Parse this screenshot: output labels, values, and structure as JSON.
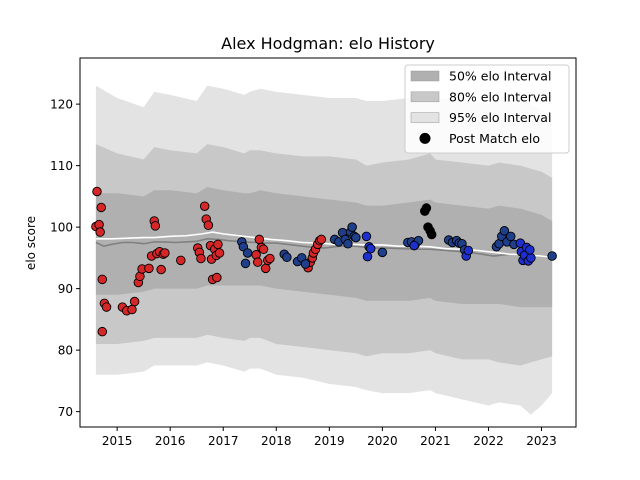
{
  "chart_data": {
    "type": "scatter",
    "title": "Alex Hodgman: elo History",
    "xlabel": "",
    "ylabel": "elo score",
    "xlim": [
      2014.3,
      2023.65
    ],
    "ylim": [
      67.5,
      127.5
    ],
    "x_ticks": [
      2015,
      2016,
      2017,
      2018,
      2019,
      2020,
      2021,
      2022,
      2023
    ],
    "y_ticks": [
      70,
      80,
      90,
      100,
      110,
      120
    ],
    "grid": false,
    "legend": {
      "placement": "top-right",
      "entries": [
        {
          "label": "50% elo Interval",
          "kind": "patch",
          "color": "#b0b0b0"
        },
        {
          "label": "80% elo Interval",
          "kind": "patch",
          "color": "#c8c8c8"
        },
        {
          "label": "95% elo Interval",
          "kind": "patch",
          "color": "#e3e3e3"
        },
        {
          "label": "Post Match elo",
          "kind": "marker",
          "color": "#000000"
        }
      ]
    },
    "colors": {
      "band95": "#e3e3e3",
      "band80": "#c8c8c8",
      "band50": "#b0b0b0",
      "mean_line": "#808080",
      "smooth_line": "#ffffff",
      "red_fill": "#d62728",
      "blue_fill": "#1f3f8a",
      "bright_blue_fill": "#1e2fd0",
      "black_fill": "#000000"
    },
    "bands": {
      "x": [
        2014.6,
        2015.0,
        2015.5,
        2015.7,
        2016.0,
        2016.5,
        2016.7,
        2017.0,
        2017.4,
        2017.5,
        2017.7,
        2018.0,
        2018.5,
        2019.0,
        2019.5,
        2019.7,
        2020.0,
        2020.5,
        2020.9,
        2021.0,
        2021.5,
        2022.0,
        2022.2,
        2022.6,
        2022.8,
        2023.0,
        2023.2
      ],
      "upper95": [
        123,
        121,
        119.5,
        122,
        121.5,
        120.5,
        123,
        122.5,
        121.5,
        122,
        122.5,
        122,
        121.5,
        121,
        121,
        120.5,
        120.5,
        121,
        122,
        121,
        120.5,
        120,
        121,
        121,
        120,
        119,
        118
      ],
      "upper80": [
        113.5,
        112,
        111,
        113,
        112.5,
        112,
        113.5,
        113,
        112,
        112.5,
        112.5,
        112,
        111.5,
        111.5,
        111,
        110,
        110.5,
        111,
        112,
        111,
        110.5,
        110,
        110.5,
        110,
        109.5,
        109,
        108
      ],
      "upper50": [
        105.5,
        105.5,
        105,
        106,
        106,
        105.5,
        106.5,
        106,
        105.5,
        105.5,
        106,
        105.5,
        105,
        104.5,
        104,
        103.5,
        103.5,
        104,
        104.5,
        104,
        103.5,
        103,
        103.5,
        103,
        102.5,
        102,
        101
      ],
      "lower50": [
        89,
        89,
        89.5,
        90,
        90,
        90,
        90.5,
        90.5,
        90.5,
        90.5,
        90.5,
        90,
        89.5,
        89,
        88.5,
        88,
        88,
        88,
        88.5,
        88,
        87.5,
        87.5,
        87.5,
        87,
        87,
        87,
        87
      ],
      "lower80": [
        81,
        81,
        81.5,
        82,
        82,
        82,
        82.5,
        82,
        81.5,
        82,
        82,
        81,
        80.5,
        80,
        79.5,
        79,
        79.5,
        79.5,
        80,
        79.5,
        78.5,
        78.5,
        78,
        77.5,
        78,
        78.5,
        79
      ],
      "lower95": [
        76,
        76,
        76.5,
        77.5,
        77.5,
        77.5,
        78,
        77.5,
        76.5,
        77,
        77,
        76,
        75.5,
        74.5,
        74,
        73.5,
        73,
        73,
        73.5,
        73,
        72,
        71,
        71.5,
        71,
        69.5,
        71,
        73
      ]
    },
    "mean_line": {
      "x": [
        2014.6,
        2014.75,
        2014.9,
        2015.1,
        2015.3,
        2015.5,
        2015.7,
        2015.9,
        2016.1,
        2016.3,
        2016.5,
        2016.7,
        2016.9,
        2017.1,
        2017.4,
        2017.6,
        2017.8,
        2018.0,
        2018.3,
        2018.6,
        2018.9,
        2019.2,
        2019.5,
        2019.8,
        2020.1,
        2020.4,
        2020.7,
        2020.9,
        2021.2,
        2021.5,
        2021.8,
        2022.1,
        2022.4,
        2022.7,
        2023.0,
        2023.2
      ],
      "y": [
        97.5,
        96.9,
        97.2,
        97.5,
        97.5,
        97.3,
        97.6,
        97.6,
        97.5,
        97.6,
        97.7,
        98.1,
        98.0,
        97.8,
        97.6,
        97.5,
        97.4,
        97.4,
        97.1,
        96.8,
        96.6,
        96.9,
        96.9,
        96.6,
        96.6,
        96.5,
        96.4,
        96.4,
        96.2,
        96.0,
        95.7,
        95.3,
        95.6,
        95.5,
        95.3,
        95.2
      ]
    },
    "smooth_line": {
      "x": [
        2014.6,
        2014.9,
        2015.2,
        2015.5,
        2015.7,
        2016.0,
        2016.3,
        2016.6,
        2016.8,
        2017.0,
        2017.3,
        2017.6,
        2017.9,
        2018.2,
        2018.5,
        2018.8,
        2019.1,
        2019.4,
        2019.7,
        2020.0,
        2020.3,
        2020.6,
        2020.9,
        2021.2,
        2021.5,
        2021.8,
        2022.1,
        2022.4,
        2022.7,
        2023.0,
        2023.2
      ],
      "y": [
        98.1,
        98.1,
        98.2,
        98.3,
        98.3,
        98.5,
        98.6,
        98.9,
        99.2,
        98.9,
        98.6,
        98.3,
        98.0,
        97.8,
        97.5,
        97.4,
        97.2,
        97.2,
        97.1,
        97.1,
        96.9,
        96.9,
        96.8,
        96.5,
        96.4,
        96.2,
        95.9,
        95.6,
        95.5,
        95.3,
        95.1
      ]
    },
    "series": [
      {
        "name": "Post Match elo",
        "fill_key": "red_fill",
        "points": [
          [
            2014.62,
            105.8
          ],
          [
            2014.6,
            100.1
          ],
          [
            2014.66,
            100.4
          ],
          [
            2014.7,
            103.2
          ],
          [
            2014.68,
            99.2
          ],
          [
            2014.72,
            91.5
          ],
          [
            2014.76,
            87.6
          ],
          [
            2014.8,
            87.0
          ],
          [
            2014.72,
            83.0
          ],
          [
            2015.1,
            87.0
          ],
          [
            2015.18,
            86.4
          ],
          [
            2015.28,
            86.6
          ],
          [
            2015.33,
            87.9
          ],
          [
            2015.4,
            91.0
          ],
          [
            2015.43,
            92.0
          ],
          [
            2015.47,
            93.2
          ],
          [
            2015.6,
            93.3
          ],
          [
            2015.65,
            95.3
          ],
          [
            2015.7,
            101.0
          ],
          [
            2015.72,
            100.2
          ],
          [
            2015.75,
            95.7
          ],
          [
            2015.8,
            96.0
          ],
          [
            2015.83,
            93.1
          ],
          [
            2015.87,
            95.6
          ],
          [
            2015.9,
            95.8
          ],
          [
            2016.2,
            94.6
          ],
          [
            2016.52,
            96.6
          ],
          [
            2016.55,
            95.9
          ],
          [
            2016.58,
            94.9
          ],
          [
            2016.65,
            103.4
          ],
          [
            2016.68,
            101.3
          ],
          [
            2016.72,
            100.3
          ],
          [
            2016.76,
            97.0
          ],
          [
            2016.78,
            94.8
          ],
          [
            2016.8,
            91.5
          ],
          [
            2016.84,
            96.4
          ],
          [
            2016.87,
            95.4
          ],
          [
            2016.9,
            97.2
          ],
          [
            2016.93,
            95.8
          ],
          [
            2016.88,
            91.8
          ],
          [
            2017.62,
            95.5
          ],
          [
            2017.65,
            94.3
          ],
          [
            2017.68,
            98.0
          ],
          [
            2017.72,
            96.7
          ],
          [
            2017.76,
            96.4
          ],
          [
            2017.8,
            93.3
          ],
          [
            2017.84,
            94.6
          ],
          [
            2017.88,
            94.9
          ],
          [
            2018.6,
            93.4
          ],
          [
            2018.64,
            94.3
          ],
          [
            2018.68,
            95.0
          ],
          [
            2018.7,
            95.8
          ],
          [
            2018.74,
            96.4
          ],
          [
            2018.78,
            97.2
          ],
          [
            2018.82,
            97.8
          ],
          [
            2018.85,
            98.0
          ]
        ]
      },
      {
        "name": "",
        "fill_key": "blue_fill",
        "points": [
          [
            2017.35,
            97.6
          ],
          [
            2017.38,
            96.8
          ],
          [
            2017.42,
            94.1
          ],
          [
            2017.46,
            95.8
          ],
          [
            2018.15,
            95.6
          ],
          [
            2018.2,
            95.1
          ],
          [
            2018.4,
            94.4
          ],
          [
            2018.48,
            95.0
          ],
          [
            2018.55,
            94.0
          ],
          [
            2019.1,
            98.0
          ],
          [
            2019.18,
            97.6
          ],
          [
            2019.25,
            99.1
          ],
          [
            2019.3,
            98.0
          ],
          [
            2019.35,
            97.3
          ],
          [
            2019.4,
            99.2
          ],
          [
            2019.43,
            100.0
          ],
          [
            2019.47,
            98.5
          ],
          [
            2019.5,
            98.3
          ],
          [
            2020.0,
            95.9
          ],
          [
            2020.48,
            97.5
          ],
          [
            2020.55,
            97.6
          ],
          [
            2020.62,
            97.2
          ],
          [
            2020.68,
            97.8
          ],
          [
            2021.25,
            97.9
          ],
          [
            2021.32,
            97.5
          ],
          [
            2021.4,
            97.8
          ],
          [
            2021.45,
            97.4
          ],
          [
            2021.5,
            97.3
          ],
          [
            2021.55,
            96.3
          ],
          [
            2022.15,
            96.8
          ],
          [
            2022.2,
            97.3
          ],
          [
            2022.25,
            98.5
          ],
          [
            2022.3,
            99.4
          ],
          [
            2022.35,
            97.6
          ],
          [
            2022.42,
            98.5
          ],
          [
            2022.48,
            97.2
          ],
          [
            2023.2,
            95.3
          ]
        ]
      },
      {
        "name": "",
        "fill_key": "bright_blue_fill",
        "points": [
          [
            2019.7,
            98.5
          ],
          [
            2019.75,
            96.8
          ],
          [
            2019.72,
            95.2
          ],
          [
            2019.78,
            96.5
          ],
          [
            2020.6,
            97.0
          ],
          [
            2021.58,
            95.3
          ],
          [
            2021.62,
            96.2
          ],
          [
            2022.6,
            97.4
          ],
          [
            2022.62,
            96.0
          ],
          [
            2022.65,
            94.6
          ],
          [
            2022.68,
            95.4
          ],
          [
            2022.72,
            96.7
          ],
          [
            2022.75,
            94.5
          ],
          [
            2022.8,
            95.0
          ],
          [
            2022.78,
            96.3
          ]
        ]
      },
      {
        "name": "",
        "fill_key": "black_fill",
        "points": [
          [
            2020.8,
            102.6
          ],
          [
            2020.83,
            103.1
          ],
          [
            2020.86,
            100.0
          ],
          [
            2020.9,
            99.4
          ],
          [
            2020.93,
            98.8
          ]
        ]
      }
    ]
  }
}
